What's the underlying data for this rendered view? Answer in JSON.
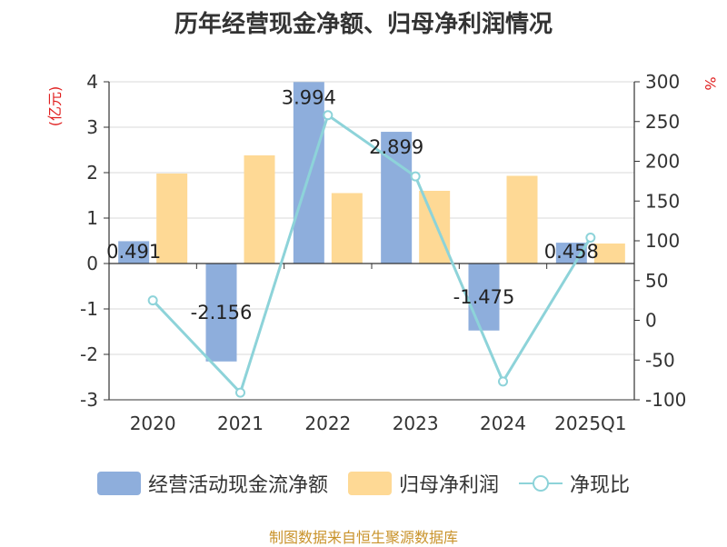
{
  "chart_data": {
    "type": "bar+line",
    "title": "历年经营现金净额、归母净利润情况",
    "categories": [
      "2020",
      "2021",
      "2022",
      "2023",
      "2024",
      "2025Q1"
    ],
    "series": [
      {
        "name": "经营活动现金流净额",
        "axis": "left",
        "kind": "bar",
        "color": "#8eaedc",
        "values": [
          0.491,
          -2.156,
          3.994,
          2.899,
          -1.475,
          0.458
        ]
      },
      {
        "name": "归母净利润",
        "axis": "left",
        "kind": "bar",
        "color": "#fed995",
        "values": [
          1.98,
          2.38,
          1.55,
          1.6,
          1.93,
          0.44
        ]
      },
      {
        "name": "净现比",
        "axis": "right",
        "kind": "line",
        "color": "#8dd3d9",
        "values": [
          25,
          -91,
          258,
          181,
          -77,
          104
        ]
      }
    ],
    "data_labels": [
      "0.491",
      "-2.156",
      "3.994",
      "2.899",
      "-1.475",
      "0.458"
    ],
    "y_left": {
      "label": "(亿元)",
      "min": -3,
      "max": 4,
      "ticks": [
        4,
        3,
        2,
        1,
        0,
        -1,
        -2,
        -3
      ]
    },
    "y_right": {
      "label": "%",
      "min": -100,
      "max": 300,
      "ticks": [
        300,
        250,
        200,
        150,
        100,
        50,
        0,
        -50,
        -100
      ]
    },
    "legend": [
      "经营活动现金流净额",
      "归母净利润",
      "净现比"
    ],
    "source": "制图数据来自恒生聚源数据库"
  }
}
